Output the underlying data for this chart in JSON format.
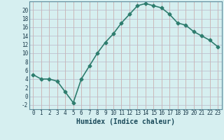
{
  "x": [
    0,
    1,
    2,
    3,
    4,
    5,
    6,
    7,
    8,
    9,
    10,
    11,
    12,
    13,
    14,
    15,
    16,
    17,
    18,
    19,
    20,
    21,
    22,
    23
  ],
  "y": [
    5,
    4,
    4,
    3.5,
    1,
    -1.5,
    4,
    7,
    10,
    12.5,
    14.5,
    17,
    19,
    21,
    21.5,
    21,
    20.5,
    19,
    17,
    16.5,
    15,
    14,
    13,
    11.5
  ],
  "line_color": "#2e7d6e",
  "marker": "D",
  "marker_size": 2.5,
  "bg_color": "#d6eff0",
  "grid_color_v": "#c8a0a0",
  "grid_color_h": "#b8b8c8",
  "xlabel": "Humidex (Indice chaleur)",
  "xlim": [
    -0.5,
    23.5
  ],
  "ylim": [
    -3,
    22
  ],
  "yticks": [
    -2,
    0,
    2,
    4,
    6,
    8,
    10,
    12,
    14,
    16,
    18,
    20
  ],
  "xticks": [
    0,
    1,
    2,
    3,
    4,
    5,
    6,
    7,
    8,
    9,
    10,
    11,
    12,
    13,
    14,
    15,
    16,
    17,
    18,
    19,
    20,
    21,
    22,
    23
  ],
  "xlabel_fontsize": 7,
  "tick_fontsize": 5.5,
  "line_width": 1.2
}
